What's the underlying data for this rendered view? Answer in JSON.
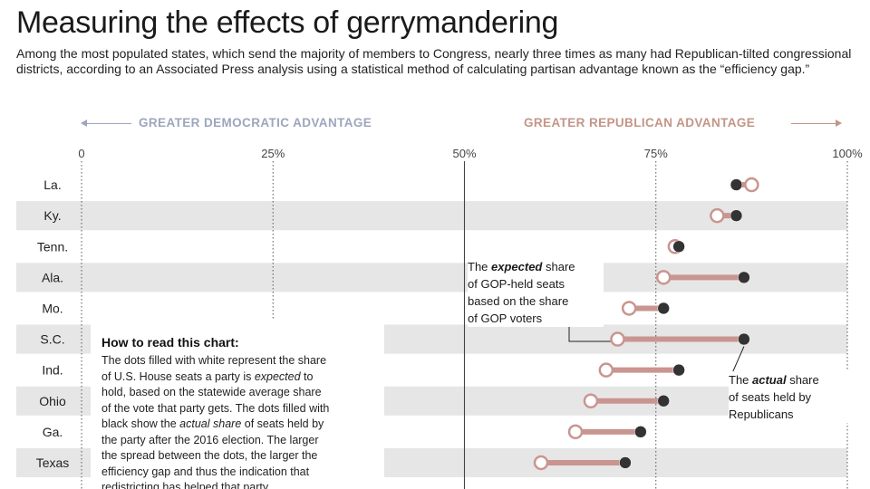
{
  "title": "Measuring the effects of gerrymandering",
  "subtitle": "Among the most populated states, which send the majority of members to Congress, nearly three times as many had Republican-tilted congressional districts, according to an Associated Press analysis using a statistical method of calculating partisan advantage known as the “efficiency gap.”",
  "direction_labels": {
    "dem": "GREATER DEMOCRATIC ADVANTAGE",
    "rep": "GREATER REPUBLICAN ADVANTAGE"
  },
  "colors": {
    "row_band": "#e6e6e6",
    "connector": "#c99590",
    "dot_dark": "#333333",
    "dem_label": "#9ea5bd",
    "rep_label": "#c49588"
  },
  "annotations": {
    "expected": [
      "The expected share",
      "of GOP-held seats",
      "based on the share",
      "of GOP voters"
    ],
    "actual": [
      "The actual share",
      "of seats held by",
      "Republicans"
    ]
  },
  "howto": {
    "title": "How to read this chart:",
    "body": [
      "The dots filled with white represent the share",
      "of U.S. House seats a party is expected to",
      "hold, based on the statewide average share",
      "of the vote that party gets. The dots filled with",
      "black show the actual share of seats held by",
      "the party after the 2016 election. The larger",
      "the spread between the dots, the larger the",
      "efficiency gap and thus the indication that",
      "redistricting has helped that party."
    ]
  },
  "chart_data": {
    "type": "dumbbell",
    "title": "Measuring the effects of gerrymandering",
    "xlim": [
      0,
      100
    ],
    "x_ticks": [
      0,
      25,
      50,
      75,
      100
    ],
    "x_tick_labels": [
      "0",
      "25%",
      "50%",
      "75%",
      "100%"
    ],
    "categories": [
      "La.",
      "Ky.",
      "Tenn.",
      "Ala.",
      "Mo.",
      "S.C.",
      "Ind.",
      "Ohio",
      "Ga.",
      "Texas"
    ],
    "series": [
      {
        "values": [
          87.5,
          83.0,
          77.5,
          76.0,
          71.5,
          70.0,
          68.5,
          66.5,
          64.5,
          60.0
        ]
      },
      {
        "values": [
          85.5,
          85.5,
          78.0,
          86.5,
          76.0,
          86.5,
          78.0,
          76.0,
          73.0,
          71.0
        ]
      }
    ]
  }
}
